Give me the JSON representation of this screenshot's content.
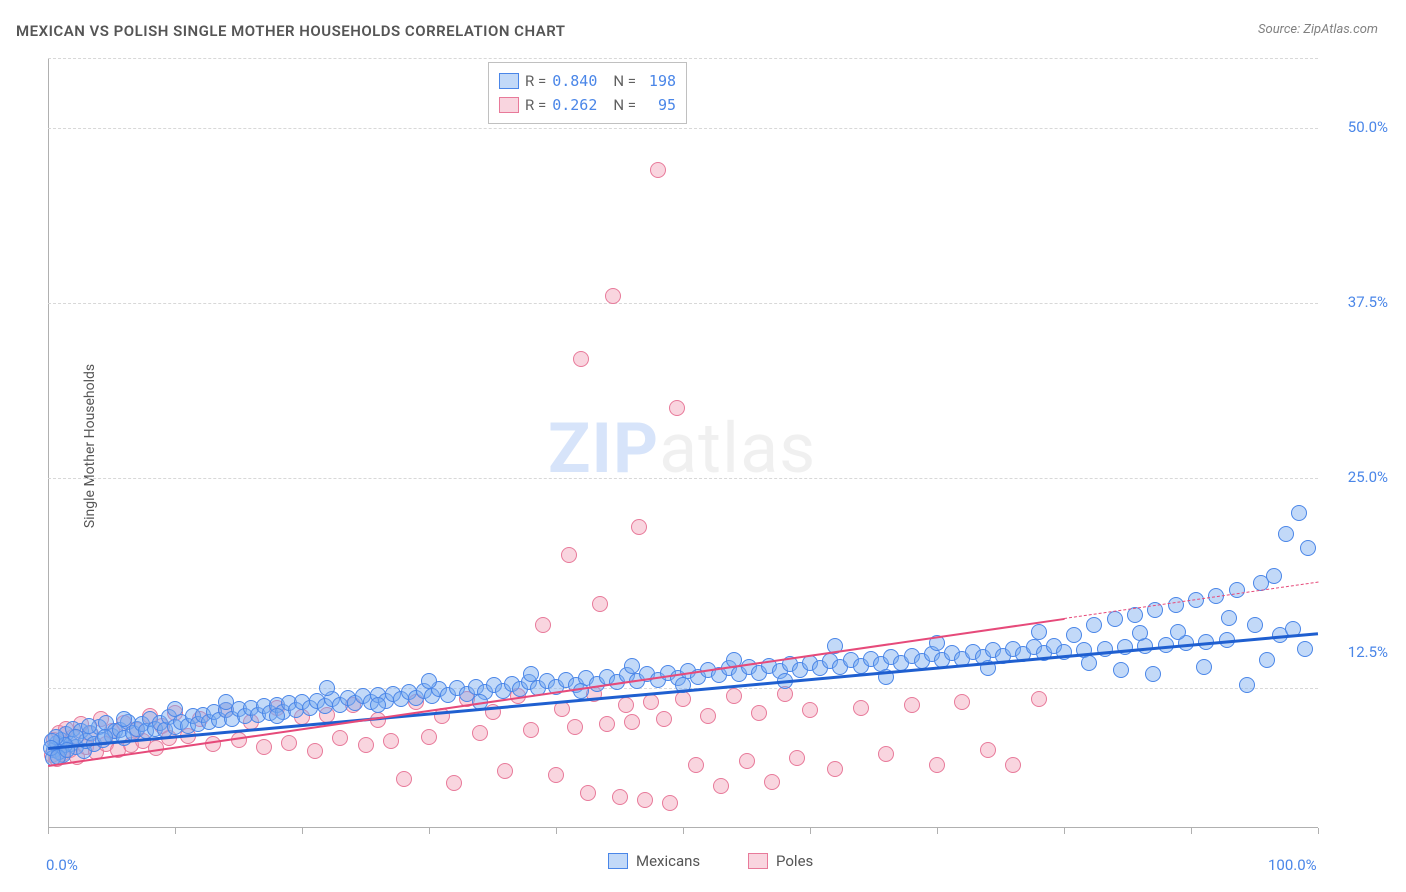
{
  "title": "MEXICAN VS POLISH SINGLE MOTHER HOUSEHOLDS CORRELATION CHART",
  "source": "Source: ZipAtlas.com",
  "ylabel": "Single Mother Households",
  "watermark_zip": "ZIP",
  "watermark_atlas": "atlas",
  "chart": {
    "type": "scatter",
    "background_color": "#ffffff",
    "grid_color": "#d8d8d8",
    "axis_color": "#b0b0b0",
    "xlim": [
      0,
      100
    ],
    "ylim": [
      0,
      55
    ],
    "x_ticks": [
      0,
      10,
      20,
      30,
      40,
      50,
      60,
      70,
      80,
      90,
      100
    ],
    "x_tick_labels": {
      "0": "0.0%",
      "100": "100.0%"
    },
    "y_grid": [
      10,
      25,
      37.5,
      50,
      55
    ],
    "y_tick_labels": {
      "50": "50.0%",
      "37.5": "37.5%",
      "25": "25.0%",
      "12.5": "12.5%"
    },
    "marker_radius": 8,
    "marker_stroke": 1.5,
    "series": {
      "mexicans": {
        "label": "Mexicans",
        "fill": "rgba(120,170,240,0.45)",
        "stroke": "#4a86e8",
        "trend_color": "#1f5fd0",
        "trend_width": 3,
        "trend": {
          "x1": 0,
          "y1": 5.8,
          "x2": 100,
          "y2": 14.0
        },
        "stats": {
          "R": "0.840",
          "N": "198"
        },
        "points": [
          [
            0.5,
            5.6
          ],
          [
            0.7,
            6.1
          ],
          [
            1.0,
            6.3
          ],
          [
            1.2,
            5.2
          ],
          [
            1.4,
            6.7
          ],
          [
            1.8,
            6.0
          ],
          [
            2.0,
            7.1
          ],
          [
            2.2,
            5.8
          ],
          [
            2.6,
            6.9
          ],
          [
            2.8,
            5.5
          ],
          [
            3.0,
            6.2
          ],
          [
            3.3,
            6.8
          ],
          [
            3.6,
            6.0
          ],
          [
            4.0,
            7.2
          ],
          [
            4.3,
            6.3
          ],
          [
            4.6,
            7.5
          ],
          [
            5.0,
            6.6
          ],
          [
            5.3,
            6.9
          ],
          [
            5.7,
            7.0
          ],
          [
            6.0,
            6.4
          ],
          [
            6.3,
            7.6
          ],
          [
            6.7,
            6.8
          ],
          [
            7.0,
            7.1
          ],
          [
            7.4,
            7.4
          ],
          [
            7.7,
            6.9
          ],
          [
            8.0,
            7.8
          ],
          [
            8.4,
            7.1
          ],
          [
            8.8,
            7.5
          ],
          [
            9.2,
            7.0
          ],
          [
            9.5,
            7.9
          ],
          [
            10.0,
            7.2
          ],
          [
            10.5,
            7.6
          ],
          [
            11.0,
            7.3
          ],
          [
            11.4,
            8.0
          ],
          [
            11.8,
            7.4
          ],
          [
            12.2,
            8.1
          ],
          [
            12.7,
            7.6
          ],
          [
            13.1,
            8.3
          ],
          [
            13.5,
            7.7
          ],
          [
            14.0,
            8.4
          ],
          [
            14.5,
            7.8
          ],
          [
            15.0,
            8.5
          ],
          [
            15.5,
            8.0
          ],
          [
            16.0,
            8.6
          ],
          [
            16.5,
            8.1
          ],
          [
            17.0,
            8.7
          ],
          [
            17.5,
            8.2
          ],
          [
            18.0,
            8.8
          ],
          [
            18.5,
            8.3
          ],
          [
            19.0,
            8.9
          ],
          [
            19.5,
            8.4
          ],
          [
            20.0,
            9.0
          ],
          [
            20.6,
            8.6
          ],
          [
            21.2,
            9.1
          ],
          [
            21.8,
            8.7
          ],
          [
            22.4,
            9.2
          ],
          [
            23.0,
            8.8
          ],
          [
            23.6,
            9.3
          ],
          [
            24.2,
            8.9
          ],
          [
            24.8,
            9.4
          ],
          [
            25.4,
            9.0
          ],
          [
            26.0,
            9.5
          ],
          [
            26.6,
            9.1
          ],
          [
            27.2,
            9.6
          ],
          [
            27.8,
            9.2
          ],
          [
            28.4,
            9.7
          ],
          [
            29.0,
            9.3
          ],
          [
            29.6,
            9.8
          ],
          [
            30.2,
            9.4
          ],
          [
            30.8,
            9.9
          ],
          [
            31.5,
            9.5
          ],
          [
            32.2,
            10.0
          ],
          [
            33.0,
            9.6
          ],
          [
            33.7,
            10.1
          ],
          [
            34.4,
            9.7
          ],
          [
            35.1,
            10.2
          ],
          [
            35.8,
            9.8
          ],
          [
            36.5,
            10.3
          ],
          [
            37.2,
            9.9
          ],
          [
            37.9,
            10.4
          ],
          [
            38.6,
            10.0
          ],
          [
            39.3,
            10.5
          ],
          [
            40.0,
            10.1
          ],
          [
            40.8,
            10.6
          ],
          [
            41.6,
            10.2
          ],
          [
            42.4,
            10.7
          ],
          [
            43.2,
            10.3
          ],
          [
            44.0,
            10.8
          ],
          [
            44.8,
            10.4
          ],
          [
            45.6,
            10.9
          ],
          [
            46.4,
            10.5
          ],
          [
            47.2,
            11.0
          ],
          [
            48.0,
            10.6
          ],
          [
            48.8,
            11.1
          ],
          [
            49.6,
            10.7
          ],
          [
            50.4,
            11.2
          ],
          [
            51.2,
            10.8
          ],
          [
            52.0,
            11.3
          ],
          [
            52.8,
            10.9
          ],
          [
            53.6,
            11.4
          ],
          [
            54.4,
            11.0
          ],
          [
            55.2,
            11.5
          ],
          [
            56.0,
            11.1
          ],
          [
            56.8,
            11.6
          ],
          [
            57.6,
            11.2
          ],
          [
            58.4,
            11.7
          ],
          [
            59.2,
            11.3
          ],
          [
            60.0,
            11.8
          ],
          [
            60.8,
            11.4
          ],
          [
            61.6,
            11.9
          ],
          [
            62.4,
            11.5
          ],
          [
            63.2,
            12.0
          ],
          [
            64.0,
            11.6
          ],
          [
            64.8,
            12.1
          ],
          [
            65.6,
            11.7
          ],
          [
            66.4,
            12.2
          ],
          [
            67.2,
            11.8
          ],
          [
            68.0,
            12.3
          ],
          [
            68.8,
            11.9
          ],
          [
            69.6,
            12.4
          ],
          [
            70.4,
            12.0
          ],
          [
            71.2,
            12.5
          ],
          [
            72.0,
            12.1
          ],
          [
            72.8,
            12.6
          ],
          [
            73.6,
            12.2
          ],
          [
            74.4,
            12.7
          ],
          [
            75.2,
            12.3
          ],
          [
            76.0,
            12.8
          ],
          [
            76.8,
            12.4
          ],
          [
            77.6,
            12.9
          ],
          [
            78.4,
            12.5
          ],
          [
            79.2,
            13.0
          ],
          [
            80.0,
            12.6
          ],
          [
            80.8,
            13.8
          ],
          [
            81.6,
            12.7
          ],
          [
            82.4,
            14.5
          ],
          [
            83.2,
            12.8
          ],
          [
            84.0,
            14.9
          ],
          [
            84.8,
            12.9
          ],
          [
            85.6,
            15.2
          ],
          [
            86.4,
            13.0
          ],
          [
            87.2,
            15.6
          ],
          [
            88.0,
            13.1
          ],
          [
            88.8,
            15.9
          ],
          [
            89.6,
            13.2
          ],
          [
            90.4,
            16.3
          ],
          [
            91.2,
            13.3
          ],
          [
            92.0,
            16.6
          ],
          [
            92.8,
            13.4
          ],
          [
            93.6,
            17.0
          ],
          [
            94.4,
            10.2
          ],
          [
            95.0,
            14.5
          ],
          [
            95.5,
            17.5
          ],
          [
            96.0,
            12.0
          ],
          [
            96.5,
            18.0
          ],
          [
            97.0,
            13.8
          ],
          [
            97.5,
            21.0
          ],
          [
            98.0,
            14.2
          ],
          [
            98.5,
            22.5
          ],
          [
            99.0,
            12.8
          ],
          [
            99.2,
            20.0
          ],
          [
            87.0,
            11.0
          ],
          [
            89.0,
            14.0
          ],
          [
            91.0,
            11.5
          ],
          [
            93.0,
            15.0
          ],
          [
            82.0,
            11.8
          ],
          [
            84.5,
            11.3
          ],
          [
            86.0,
            13.9
          ],
          [
            78.0,
            14.0
          ],
          [
            74.0,
            11.4
          ],
          [
            70.0,
            13.2
          ],
          [
            66.0,
            10.8
          ],
          [
            62.0,
            13.0
          ],
          [
            58.0,
            10.5
          ],
          [
            54.0,
            12.0
          ],
          [
            50.0,
            10.2
          ],
          [
            46.0,
            11.6
          ],
          [
            42.0,
            9.8
          ],
          [
            38.0,
            11.0
          ],
          [
            34.0,
            9.0
          ],
          [
            30.0,
            10.5
          ],
          [
            26.0,
            8.8
          ],
          [
            22.0,
            10.0
          ],
          [
            18.0,
            8.0
          ],
          [
            14.0,
            9.0
          ],
          [
            10.0,
            8.5
          ],
          [
            6.0,
            7.8
          ],
          [
            4.5,
            6.5
          ],
          [
            3.2,
            7.3
          ],
          [
            2.2,
            6.5
          ],
          [
            1.3,
            5.9
          ],
          [
            0.9,
            5.4
          ],
          [
            0.6,
            6.5
          ],
          [
            0.4,
            5.0
          ],
          [
            0.3,
            6.2
          ],
          [
            0.2,
            5.7
          ],
          [
            0.8,
            5.1
          ],
          [
            1.5,
            5.6
          ]
        ]
      },
      "poles": {
        "label": "Poles",
        "fill": "rgba(240,150,175,0.40)",
        "stroke": "#e87a9a",
        "trend_color": "#e64a7a",
        "trend_width": 2,
        "trend_solid": {
          "x1": 0,
          "y1": 4.5,
          "x2": 80,
          "y2": 15.0
        },
        "trend_dashed": {
          "x1": 80,
          "y1": 15.0,
          "x2": 100,
          "y2": 17.6
        },
        "stats": {
          "R": "0.262",
          "N": "95"
        },
        "points": [
          [
            0.3,
            5.2
          ],
          [
            0.5,
            6.3
          ],
          [
            0.7,
            4.9
          ],
          [
            0.9,
            6.8
          ],
          [
            1.1,
            5.3
          ],
          [
            1.4,
            7.1
          ],
          [
            1.7,
            5.6
          ],
          [
            2.0,
            6.5
          ],
          [
            2.3,
            5.1
          ],
          [
            2.6,
            7.4
          ],
          [
            3.0,
            5.8
          ],
          [
            3.4,
            6.7
          ],
          [
            3.8,
            5.4
          ],
          [
            4.2,
            7.8
          ],
          [
            4.6,
            6.0
          ],
          [
            5.0,
            6.9
          ],
          [
            5.5,
            5.6
          ],
          [
            6.0,
            7.5
          ],
          [
            6.5,
            5.9
          ],
          [
            7.0,
            7.0
          ],
          [
            7.5,
            6.2
          ],
          [
            8.0,
            8.0
          ],
          [
            8.5,
            5.7
          ],
          [
            9.0,
            7.3
          ],
          [
            9.5,
            6.4
          ],
          [
            10.0,
            8.2
          ],
          [
            11.0,
            6.6
          ],
          [
            12.0,
            7.8
          ],
          [
            13.0,
            6.0
          ],
          [
            14.0,
            8.4
          ],
          [
            15.0,
            6.3
          ],
          [
            16.0,
            7.6
          ],
          [
            17.0,
            5.8
          ],
          [
            18.0,
            8.6
          ],
          [
            19.0,
            6.1
          ],
          [
            20.0,
            7.9
          ],
          [
            21.0,
            5.5
          ],
          [
            22.0,
            8.1
          ],
          [
            23.0,
            6.4
          ],
          [
            24.0,
            8.8
          ],
          [
            25.0,
            5.9
          ],
          [
            26.0,
            7.7
          ],
          [
            27.0,
            6.2
          ],
          [
            28.0,
            3.5
          ],
          [
            29.0,
            9.0
          ],
          [
            30.0,
            6.5
          ],
          [
            31.0,
            8.0
          ],
          [
            32.0,
            3.2
          ],
          [
            33.0,
            9.2
          ],
          [
            34.0,
            6.8
          ],
          [
            35.0,
            8.3
          ],
          [
            36.0,
            4.1
          ],
          [
            37.0,
            9.4
          ],
          [
            38.0,
            7.0
          ],
          [
            39.0,
            14.5
          ],
          [
            40.0,
            3.8
          ],
          [
            40.5,
            8.5
          ],
          [
            41.0,
            19.5
          ],
          [
            41.5,
            7.2
          ],
          [
            42.0,
            33.5
          ],
          [
            42.5,
            2.5
          ],
          [
            43.0,
            9.6
          ],
          [
            43.5,
            16.0
          ],
          [
            44.0,
            7.4
          ],
          [
            44.5,
            38.0
          ],
          [
            45.0,
            2.2
          ],
          [
            45.5,
            8.8
          ],
          [
            46.0,
            7.6
          ],
          [
            46.5,
            21.5
          ],
          [
            47.0,
            2.0
          ],
          [
            47.5,
            9.0
          ],
          [
            48.0,
            47.0
          ],
          [
            48.5,
            7.8
          ],
          [
            49.0,
            1.8
          ],
          [
            49.5,
            30.0
          ],
          [
            50.0,
            9.2
          ],
          [
            51.0,
            4.5
          ],
          [
            52.0,
            8.0
          ],
          [
            53.0,
            3.0
          ],
          [
            54.0,
            9.4
          ],
          [
            55.0,
            4.8
          ],
          [
            56.0,
            8.2
          ],
          [
            57.0,
            3.3
          ],
          [
            58.0,
            9.6
          ],
          [
            59.0,
            5.0
          ],
          [
            60.0,
            8.4
          ],
          [
            62.0,
            4.2
          ],
          [
            64.0,
            8.6
          ],
          [
            66.0,
            5.3
          ],
          [
            68.0,
            8.8
          ],
          [
            70.0,
            4.5
          ],
          [
            72.0,
            9.0
          ],
          [
            74.0,
            5.6
          ],
          [
            76.0,
            4.5
          ],
          [
            78.0,
            9.2
          ]
        ]
      }
    },
    "bottom_legend": [
      {
        "key": "mexicans",
        "label": "Mexicans"
      },
      {
        "key": "poles",
        "label": "Poles"
      }
    ]
  }
}
